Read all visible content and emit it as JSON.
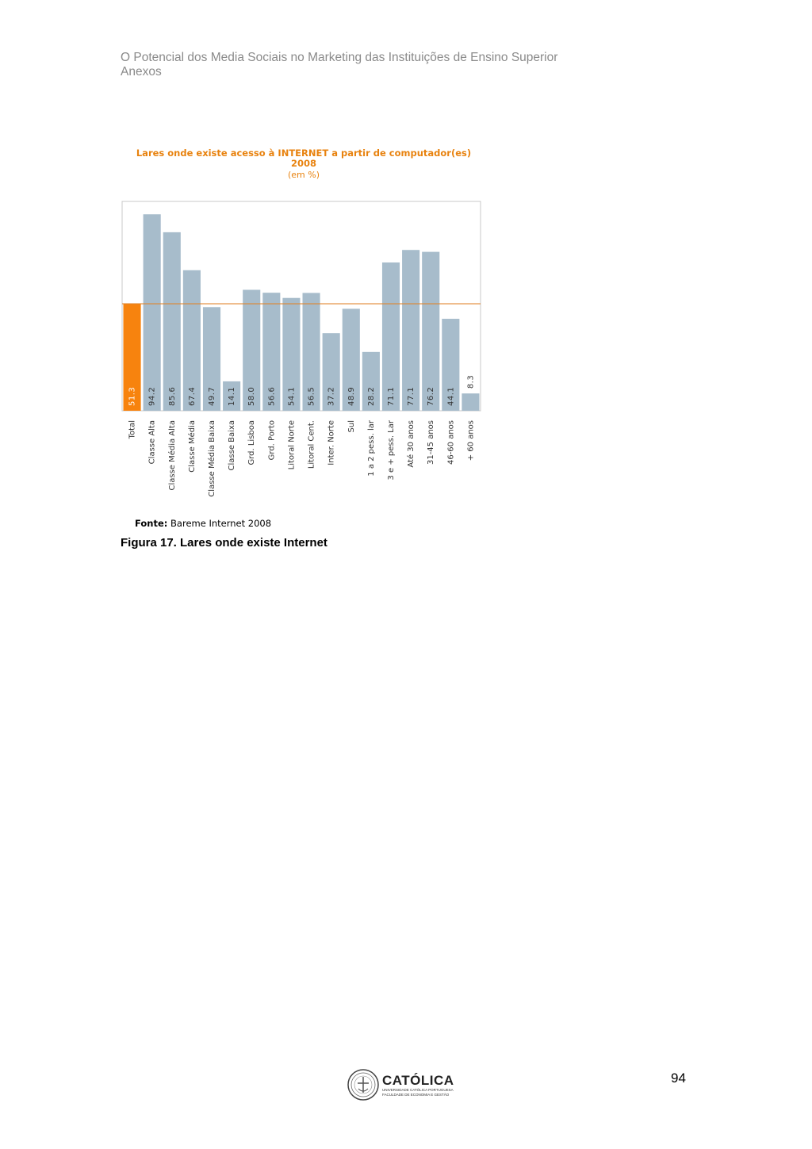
{
  "header": {
    "line1": "O Potencial dos Media Sociais no Marketing das Instituições de Ensino Superior",
    "line2": "Anexos"
  },
  "chart_data": {
    "type": "bar",
    "title_line1": "Lares onde existe acesso à INTERNET a partir de computador(es)",
    "title_line2": "2008",
    "subtitle": "(em %)",
    "categories": [
      "Total",
      "Classe Alta",
      "Classe Média Alta",
      "Classe Média",
      "Classe Média Baixa",
      "Classe Baixa",
      "Grd. Lisboa",
      "Grd. Porto",
      "Litoral Norte",
      "Litoral Cent.",
      "Inter. Norte",
      "Sul",
      "1 a 2 pess. lar",
      "3 e + pess. Lar",
      "Até 30 anos",
      "31-45 anos",
      "46-60 anos",
      "+ 60 anos"
    ],
    "values": [
      51.3,
      94.2,
      85.6,
      67.4,
      49.7,
      14.1,
      58.0,
      56.6,
      54.1,
      56.5,
      37.2,
      48.9,
      28.2,
      71.1,
      77.1,
      76.2,
      44.1,
      8.3
    ],
    "value_labels": [
      "51.3",
      "94.2",
      "85.6",
      "67.4",
      "49.7",
      "14.1",
      "58.0",
      "56.6",
      "54.1",
      "56.5",
      "37.2",
      "48.9",
      "28.2",
      "71.1",
      "77.1",
      "76.2",
      "44.1",
      "8.3"
    ],
    "reference_line": 51.3,
    "ylim": [
      0,
      100
    ],
    "highlight_color": "#f7830e",
    "bar_color": "#a7bccb",
    "line_color": "#e0832a",
    "grid": false
  },
  "source": {
    "label": "Fonte:",
    "text": "Bareme Internet 2008"
  },
  "caption": "Figura 17. Lares onde existe Internet",
  "footer": {
    "logo_name": "CATÓLICA",
    "logo_sub1": "UNIVERSIDADE CATÓLICA PORTUGUESA",
    "logo_sub2": "FACULDADE DE ECONOMIA E GESTÃO",
    "page_number": "94"
  }
}
